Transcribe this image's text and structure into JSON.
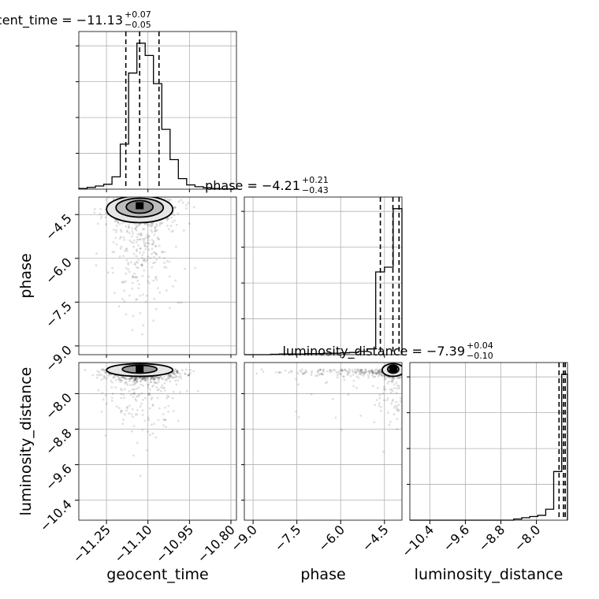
{
  "chart_data": {
    "type": "corner",
    "parameters": [
      "geocent_time",
      "phase",
      "luminosity_distance"
    ],
    "titles": [
      {
        "param": "geocent_time",
        "median": "−11.13",
        "upper": "+0.07",
        "lower": "−0.05"
      },
      {
        "param": "phase",
        "median": "−4.21",
        "upper": "+0.21",
        "lower": "−0.43"
      },
      {
        "param": "luminosity_distance",
        "median": "−7.39",
        "upper": "+0.04",
        "lower": "−0.10"
      }
    ],
    "axis_labels": {
      "x": [
        "geocent_time",
        "phase",
        "luminosity_distance"
      ],
      "y": [
        "phase",
        "luminosity_distance"
      ]
    },
    "ranges": {
      "geocent_time": [
        -11.35,
        -10.78
      ],
      "phase": [
        -9.3,
        -3.9
      ],
      "luminosity_distance": [
        -10.85,
        -7.3
      ]
    },
    "ticks": {
      "geocent_time": {
        "values": [
          -11.25,
          -11.1,
          -10.95,
          -10.8
        ],
        "labels": [
          "−11.25",
          "−11.10",
          "−10.95",
          "−10.80"
        ]
      },
      "phase": {
        "values": [
          -9.0,
          -7.5,
          -6.0,
          -4.5
        ],
        "labels": [
          "−9.0",
          "−7.5",
          "−6.0",
          "−4.5"
        ]
      },
      "luminosity_distance": {
        "values": [
          -10.4,
          -9.6,
          -8.8,
          -8.0
        ],
        "labels": [
          "−10.4",
          "−9.6",
          "−8.8",
          "−8.0"
        ]
      }
    },
    "histograms": {
      "geocent_time": {
        "bins": [
          -11.35,
          -11.32,
          -11.29,
          -11.26,
          -11.23,
          -11.2,
          -11.17,
          -11.14,
          -11.11,
          -11.08,
          -11.05,
          -11.02,
          -10.99,
          -10.96,
          -10.93,
          -10.9,
          -10.87,
          -10.84,
          -10.81,
          -10.78
        ],
        "counts": [
          2,
          5,
          9,
          14,
          35,
          128,
          330,
          415,
          380,
          300,
          170,
          84,
          30,
          12,
          7,
          4,
          2,
          1,
          1
        ]
      },
      "phase": {
        "bins": [
          -9.3,
          -9.0,
          -8.7,
          -8.4,
          -8.1,
          -7.8,
          -7.5,
          -7.2,
          -6.9,
          -6.6,
          -6.3,
          -6.0,
          -5.7,
          -5.4,
          -5.1,
          -4.8,
          -4.5,
          -4.2,
          -3.9
        ],
        "counts": [
          0,
          0,
          0,
          1,
          2,
          2,
          2,
          3,
          3,
          4,
          4,
          5,
          6,
          9,
          16,
          228,
          241,
          402
        ]
      },
      "luminosity_distance": {
        "bins": [
          -10.85,
          -10.67,
          -10.49,
          -10.31,
          -10.13,
          -9.95,
          -9.77,
          -9.59,
          -9.41,
          -9.23,
          -9.05,
          -8.87,
          -8.69,
          -8.51,
          -8.33,
          -8.15,
          -7.97,
          -7.79,
          -7.61,
          -7.43,
          -7.3
        ],
        "counts": [
          0,
          0,
          0,
          0,
          0,
          0,
          0,
          0,
          0,
          0,
          0,
          0,
          0,
          1,
          2,
          3,
          4,
          9,
          40,
          120
        ]
      }
    },
    "quantiles": {
      "geocent_time": [
        -11.18,
        -11.13,
        -11.06
      ],
      "phase": [
        -4.64,
        -4.21,
        -4.0
      ],
      "luminosity_distance": [
        -7.49,
        -7.39,
        -7.35
      ]
    },
    "modes": {
      "phase_vs_geocent_time": {
        "x": -11.13,
        "y": -4.21
      },
      "luminosity_distance_vs_geocent_time": {
        "x": -11.13,
        "y": -7.45
      },
      "luminosity_distance_vs_phase": {
        "x": -4.2,
        "y": -7.45
      }
    },
    "grid": true
  }
}
